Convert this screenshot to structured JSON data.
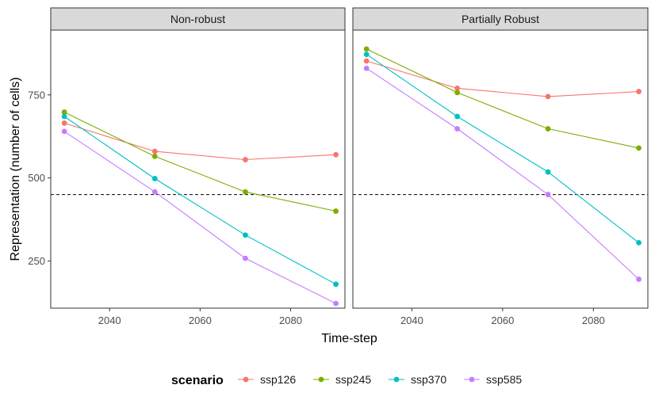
{
  "chart_data": {
    "type": "line",
    "xlabel": "Time-step",
    "ylabel": "Representation (number of cells)",
    "xlim": [
      2027,
      2092
    ],
    "ylim": [
      108,
      945
    ],
    "xticks": [
      2040,
      2060,
      2080
    ],
    "yticks": [
      250,
      500,
      750
    ],
    "reference_line": {
      "y": 450,
      "style": "dashed",
      "color": "#000000"
    },
    "legend": {
      "title": "scenario",
      "position": "bottom",
      "entries": [
        "ssp126",
        "ssp245",
        "ssp370",
        "ssp585"
      ]
    },
    "colors": {
      "ssp126": "#F8766D",
      "ssp245": "#7CAE00",
      "ssp370": "#00BFC4",
      "ssp585": "#C77CFF"
    },
    "strip_background": "#d9d9d9",
    "panels": [
      {
        "title": "Non-robust",
        "x": [
          2030,
          2050,
          2070,
          2090
        ],
        "series": [
          {
            "name": "ssp126",
            "values": [
              665,
              580,
              555,
              570
            ]
          },
          {
            "name": "ssp245",
            "values": [
              698,
              565,
              458,
              400
            ]
          },
          {
            "name": "ssp370",
            "values": [
              685,
              498,
              328,
              180
            ]
          },
          {
            "name": "ssp585",
            "values": [
              640,
              458,
              258,
              122
            ]
          }
        ]
      },
      {
        "title": "Partially Robust",
        "x": [
          2030,
          2050,
          2070,
          2090
        ],
        "series": [
          {
            "name": "ssp126",
            "values": [
              852,
              770,
              745,
              760
            ]
          },
          {
            "name": "ssp245",
            "values": [
              888,
              757,
              648,
              590
            ]
          },
          {
            "name": "ssp370",
            "values": [
              872,
              685,
              518,
              305
            ]
          },
          {
            "name": "ssp585",
            "values": [
              830,
              648,
              450,
              195
            ]
          }
        ]
      }
    ]
  }
}
